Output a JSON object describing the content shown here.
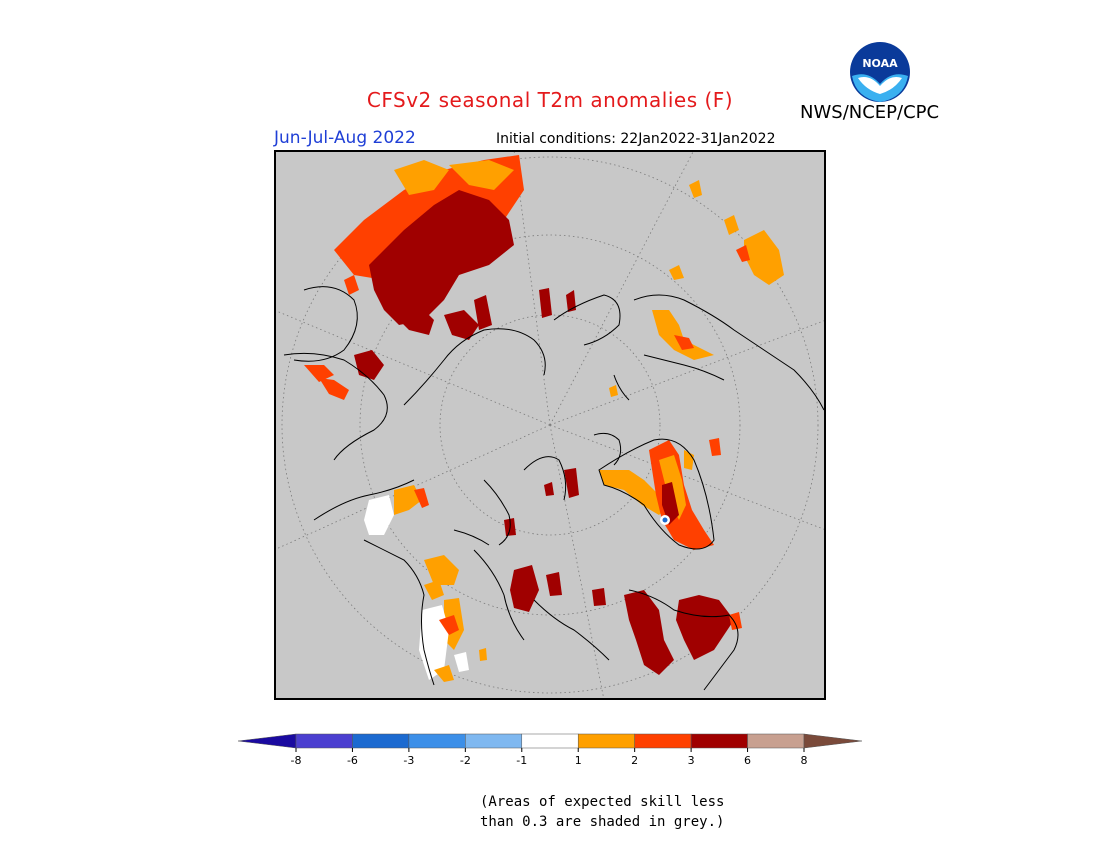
{
  "title": "CFSv2 seasonal T2m anomalies (F)",
  "agency": "NWS/NCEP/CPC",
  "logo_text": "NOAA",
  "season": "Jun-Jul-Aug 2022",
  "initial_conditions": "Initial conditions: 22Jan2022-31Jan2022",
  "colorbar": {
    "ticks": [
      "-8",
      "-6",
      "-3",
      "-2",
      "-1",
      "1",
      "2",
      "3",
      "6",
      "8"
    ],
    "colors": [
      "#1a0aa0",
      "#4b3fd0",
      "#1c6ad0",
      "#3c8fe8",
      "#7fb8f0",
      "#ffffff",
      "#ffa000",
      "#ff4000",
      "#a00000",
      "#c8a090",
      "#7a4a3a"
    ]
  },
  "note": {
    "line1": "(Areas of expected skill less",
    "line2": "than 0.3 are shaded in grey.)"
  },
  "colors": {
    "background": "#c8c8c8",
    "skill_grey": "#c8c8c8",
    "anom_1_2": "#ffa000",
    "anom_2_3": "#ff4000",
    "anom_3_6": "#a00000",
    "anom_neg": "#ffffff"
  }
}
